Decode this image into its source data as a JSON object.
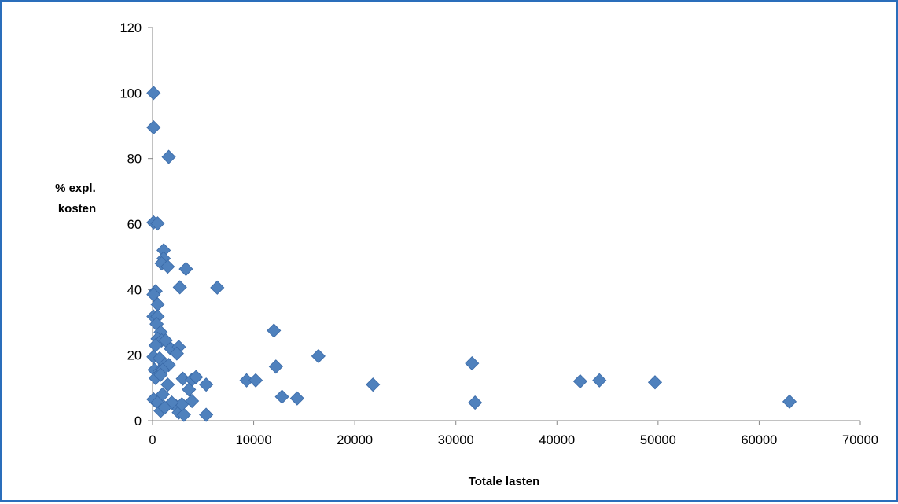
{
  "chart_data": {
    "type": "scatter",
    "title": "",
    "xlabel": "Totale lasten",
    "ylabel_lines": [
      "% expl.",
      "kosten"
    ],
    "xlim": [
      0,
      70000
    ],
    "ylim": [
      0,
      120
    ],
    "x_ticks": [
      0,
      10000,
      20000,
      30000,
      40000,
      50000,
      60000,
      70000
    ],
    "y_ticks": [
      0,
      20,
      40,
      60,
      80,
      100,
      120
    ],
    "x_tick_labels": [
      "0",
      "10000",
      "20000",
      "30000",
      "40000",
      "50000",
      "60000",
      "70000"
    ],
    "y_tick_labels": [
      "0",
      "20",
      "40",
      "60",
      "80",
      "100",
      "120"
    ],
    "grid": false,
    "legend": "none",
    "marker": "diamond",
    "marker_color": "#4f81bd",
    "series": [
      {
        "points": [
          [
            100,
            100
          ],
          [
            100,
            89.5
          ],
          [
            1600,
            80.5
          ],
          [
            100,
            60.5
          ],
          [
            500,
            60.2
          ],
          [
            1100,
            52
          ],
          [
            1100,
            49.5
          ],
          [
            900,
            48
          ],
          [
            1500,
            47
          ],
          [
            3300,
            46.3
          ],
          [
            2700,
            40.7
          ],
          [
            6400,
            40.6
          ],
          [
            300,
            39.5
          ],
          [
            100,
            38.5
          ],
          [
            500,
            35.5
          ],
          [
            100,
            31.8
          ],
          [
            500,
            31.8
          ],
          [
            400,
            29.5
          ],
          [
            800,
            27
          ],
          [
            500,
            25
          ],
          [
            900,
            24.5
          ],
          [
            1300,
            24.5
          ],
          [
            300,
            23
          ],
          [
            1800,
            22
          ],
          [
            2600,
            22.5
          ],
          [
            2400,
            20.5
          ],
          [
            100,
            19.5
          ],
          [
            700,
            19
          ],
          [
            1200,
            17
          ],
          [
            1600,
            17
          ],
          [
            200,
            15.5
          ],
          [
            700,
            15
          ],
          [
            1000,
            15.5
          ],
          [
            300,
            13
          ],
          [
            800,
            14
          ],
          [
            3000,
            12.8
          ],
          [
            3900,
            12.5
          ],
          [
            4300,
            13.3
          ],
          [
            3600,
            9.5
          ],
          [
            1500,
            11
          ],
          [
            5300,
            11
          ],
          [
            12000,
            27.5
          ],
          [
            12200,
            16.5
          ],
          [
            16400,
            19.7
          ],
          [
            9300,
            12.3
          ],
          [
            10200,
            12.3
          ],
          [
            12800,
            7.3
          ],
          [
            14300,
            6.8
          ],
          [
            5300,
            1.8
          ],
          [
            2300,
            4.5
          ],
          [
            2600,
            2.5
          ],
          [
            3100,
            1.8
          ],
          [
            2900,
            5
          ],
          [
            1900,
            5.5
          ],
          [
            3900,
            6
          ],
          [
            100,
            6.5
          ],
          [
            500,
            5.5
          ],
          [
            1000,
            8
          ],
          [
            800,
            3
          ],
          [
            1200,
            4
          ],
          [
            21800,
            11
          ],
          [
            31600,
            17.5
          ],
          [
            31900,
            5.5
          ],
          [
            42300,
            12
          ],
          [
            44200,
            12.3
          ],
          [
            49700,
            11.7
          ],
          [
            63000,
            5.8
          ]
        ]
      }
    ]
  }
}
